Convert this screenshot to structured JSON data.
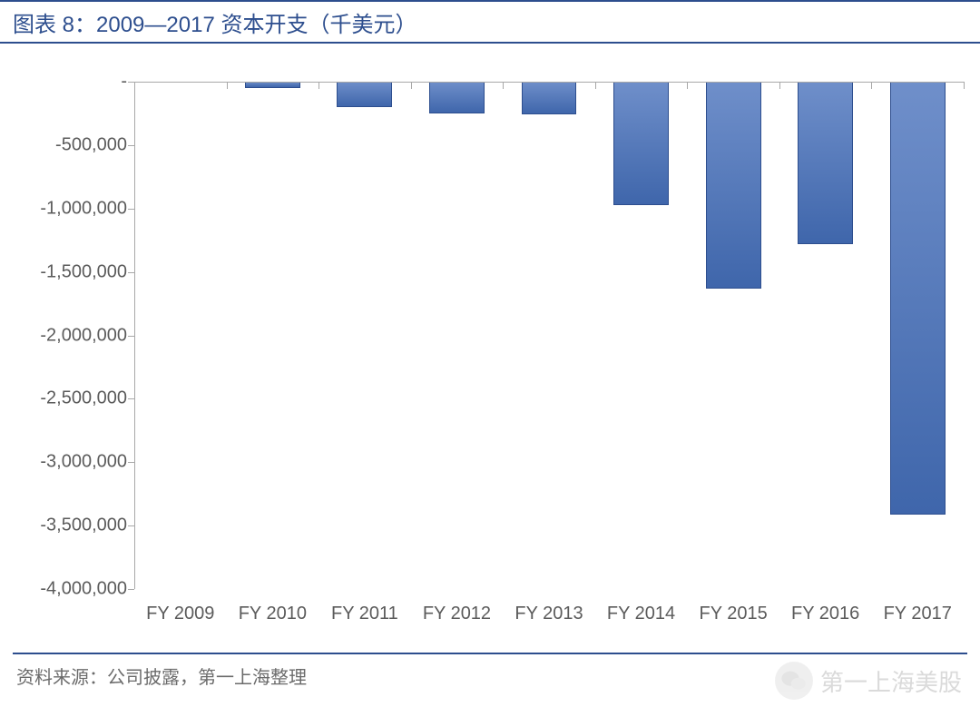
{
  "title": "图表 8：2009—2017 资本开支（千美元）",
  "footer": "资料来源：公司披露，第一上海整理",
  "watermark_text": "第一上海美股",
  "chart": {
    "type": "bar",
    "categories": [
      "FY 2009",
      "FY 2010",
      "FY 2011",
      "FY 2012",
      "FY 2013",
      "FY 2014",
      "FY 2015",
      "FY 2016",
      "FY 2017"
    ],
    "values": [
      -10000,
      -50000,
      -200000,
      -250000,
      -260000,
      -970000,
      -1630000,
      -1280000,
      -3410000
    ],
    "bar_fill_top": "#6f8fca",
    "bar_fill_bottom": "#3f66ab",
    "bar_border": "#2d4e8e",
    "ylim": [
      -4000000,
      0
    ],
    "ytick_step": 500000,
    "y_tick_labels": [
      "-",
      "-500,000",
      "-1,000,000",
      "-1,500,000",
      "-2,000,000",
      "-2,500,000",
      "-3,000,000",
      "-3,500,000",
      "-4,000,000"
    ],
    "y_tick_values": [
      0,
      -500000,
      -1000000,
      -1500000,
      -2000000,
      -2500000,
      -3000000,
      -3500000,
      -4000000
    ],
    "axis_color": "#a8a8a8",
    "label_color": "#5b5b5b",
    "label_fontsize": 20,
    "title_color": "#2d4e8e",
    "title_fontsize": 24,
    "bar_width_ratio": 0.6,
    "background_color": "#ffffff"
  }
}
